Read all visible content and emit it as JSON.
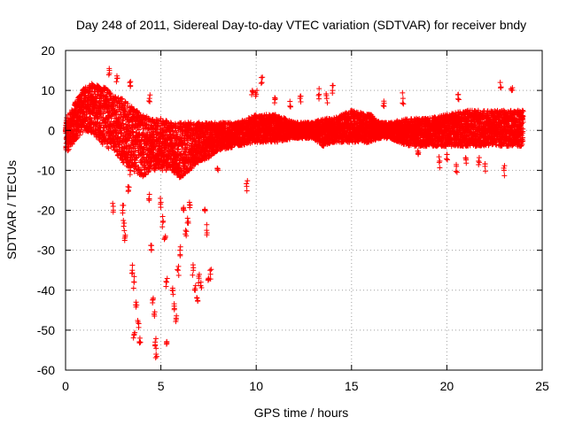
{
  "chart_data": {
    "type": "scatter",
    "title": "Day 248 of 2011, Sidereal Day-to-day VTEC variation (SDTVAR) for receiver bndy",
    "xlabel": "GPS time / hours",
    "ylabel": "SDTVAR / TECUs",
    "xlim": [
      0,
      25
    ],
    "ylim": [
      -60,
      20
    ],
    "xticks": [
      "0",
      "5",
      "10",
      "15",
      "20",
      "25"
    ],
    "yticks": [
      "20",
      "10",
      "0",
      "-10",
      "-20",
      "-30",
      "-40",
      "-50",
      "-60"
    ],
    "grid": true,
    "marker": "+",
    "color": "#ff0000",
    "series": [
      {
        "name": "SDTVAR",
        "envelope_upper": [
          [
            0.0,
            3
          ],
          [
            0.3,
            5
          ],
          [
            0.6,
            8
          ],
          [
            1.0,
            11
          ],
          [
            1.5,
            12
          ],
          [
            2.0,
            11
          ],
          [
            2.5,
            9
          ],
          [
            3.0,
            8
          ],
          [
            3.5,
            6
          ],
          [
            4.0,
            4
          ],
          [
            4.5,
            3
          ],
          [
            5.0,
            3
          ],
          [
            5.5,
            2
          ],
          [
            6.0,
            2
          ],
          [
            6.5,
            2
          ],
          [
            7.0,
            2
          ],
          [
            7.5,
            2
          ],
          [
            8.0,
            2
          ],
          [
            9.0,
            2
          ],
          [
            10.0,
            4
          ],
          [
            11.0,
            4
          ],
          [
            12.0,
            2
          ],
          [
            13.0,
            2
          ],
          [
            13.5,
            3
          ],
          [
            14.0,
            3
          ],
          [
            15.0,
            5
          ],
          [
            16.0,
            4
          ],
          [
            16.5,
            2
          ],
          [
            17.0,
            2
          ],
          [
            18.0,
            3
          ],
          [
            19.0,
            3
          ],
          [
            20.0,
            4
          ],
          [
            21.0,
            5
          ],
          [
            22.0,
            5
          ],
          [
            23.0,
            5
          ],
          [
            24.0,
            5
          ]
        ],
        "envelope_lower": [
          [
            0.0,
            -6
          ],
          [
            0.3,
            -4
          ],
          [
            0.6,
            -2
          ],
          [
            1.0,
            0
          ],
          [
            1.5,
            -1
          ],
          [
            2.0,
            -4
          ],
          [
            2.5,
            -5
          ],
          [
            3.0,
            -8
          ],
          [
            3.5,
            -10
          ],
          [
            4.0,
            -12
          ],
          [
            4.5,
            -10
          ],
          [
            5.0,
            -10
          ],
          [
            5.5,
            -10
          ],
          [
            6.0,
            -12
          ],
          [
            6.5,
            -10
          ],
          [
            7.0,
            -8
          ],
          [
            7.5,
            -7
          ],
          [
            8.0,
            -5
          ],
          [
            9.0,
            -4
          ],
          [
            10.0,
            -3
          ],
          [
            11.0,
            -3
          ],
          [
            12.0,
            -2
          ],
          [
            13.0,
            -2
          ],
          [
            13.5,
            -4
          ],
          [
            14.0,
            -3
          ],
          [
            15.0,
            -3
          ],
          [
            16.0,
            -3
          ],
          [
            16.5,
            -2
          ],
          [
            17.0,
            -2
          ],
          [
            18.0,
            -4
          ],
          [
            19.0,
            -4
          ],
          [
            20.0,
            -4
          ],
          [
            21.0,
            -4
          ],
          [
            22.0,
            -4
          ],
          [
            23.0,
            -4
          ],
          [
            24.0,
            -4
          ]
        ],
        "spikes": [
          [
            3.0,
            -20
          ],
          [
            3.05,
            -24
          ],
          [
            3.1,
            -27
          ],
          [
            3.3,
            -15
          ],
          [
            3.4,
            -10
          ],
          [
            3.5,
            -35
          ],
          [
            3.6,
            -38
          ],
          [
            3.7,
            -43
          ],
          [
            3.8,
            -48
          ],
          [
            3.9,
            -52
          ],
          [
            3.6,
            -51
          ],
          [
            4.4,
            -16
          ],
          [
            4.5,
            -30
          ],
          [
            4.6,
            -42
          ],
          [
            4.65,
            -46
          ],
          [
            4.7,
            -53
          ],
          [
            4.75,
            -56
          ],
          [
            5.0,
            -18
          ],
          [
            5.1,
            -23
          ],
          [
            5.2,
            -27
          ],
          [
            5.3,
            -38
          ],
          [
            5.6,
            -40
          ],
          [
            5.7,
            -44
          ],
          [
            5.8,
            -47
          ],
          [
            5.9,
            -35
          ],
          [
            6.0,
            -30
          ],
          [
            6.2,
            -20
          ],
          [
            6.3,
            -25
          ],
          [
            6.4,
            -22
          ],
          [
            6.5,
            -18
          ],
          [
            6.7,
            -35
          ],
          [
            6.8,
            -40
          ],
          [
            6.9,
            -42
          ],
          [
            7.0,
            -37
          ],
          [
            7.1,
            -38
          ],
          [
            7.3,
            -20
          ],
          [
            7.4,
            -25
          ],
          [
            7.5,
            -37
          ],
          [
            7.6,
            -36
          ],
          [
            8.0,
            -10
          ],
          [
            5.3,
            -53
          ],
          [
            2.5,
            -19
          ],
          [
            2.3,
            15
          ],
          [
            2.7,
            13
          ],
          [
            3.4,
            11
          ],
          [
            4.4,
            8
          ],
          [
            9.5,
            -14
          ],
          [
            10.0,
            9
          ],
          [
            10.3,
            12
          ],
          [
            11.0,
            8
          ],
          [
            13.3,
            9
          ],
          [
            13.7,
            8
          ],
          [
            14.0,
            10
          ],
          [
            16.7,
            6
          ],
          [
            17.7,
            8
          ],
          [
            18.5,
            -6
          ],
          [
            19.6,
            -8
          ],
          [
            20.0,
            -6
          ],
          [
            20.5,
            -9
          ],
          [
            21.0,
            -7
          ],
          [
            21.7,
            -8
          ],
          [
            22.0,
            -9
          ],
          [
            23.0,
            -10
          ],
          [
            22.8,
            12
          ],
          [
            23.4,
            10
          ],
          [
            20.6,
            9
          ],
          [
            9.8,
            10
          ],
          [
            12.3,
            8
          ],
          [
            11.8,
            6
          ]
        ]
      }
    ]
  }
}
